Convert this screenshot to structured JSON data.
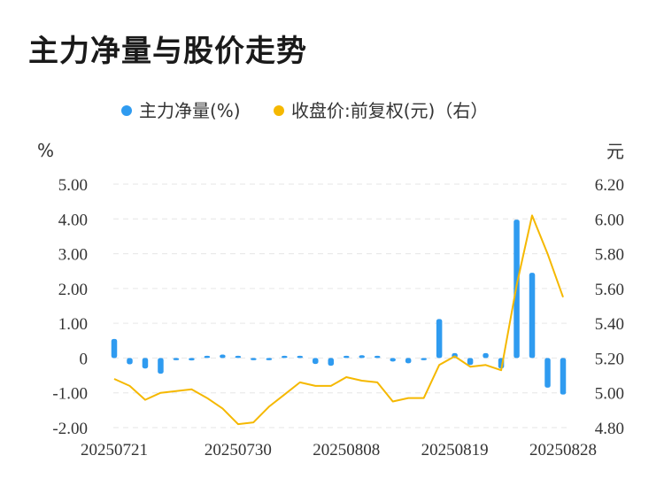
{
  "title": "主力净量与股价走势",
  "chart_data": {
    "type": "bar+line",
    "legend": [
      {
        "name": "主力净量(%)",
        "color": "#2f9bf0"
      },
      {
        "name": "收盘价:前复权(元)（右）",
        "color": "#f5b800"
      }
    ],
    "y_left": {
      "unit": "%",
      "ylim": [
        -2,
        5
      ],
      "ticks": [
        "5.00",
        "4.00",
        "3.00",
        "2.00",
        "1.00",
        "0",
        "-1.00",
        "-2.00"
      ]
    },
    "y_right": {
      "unit": "元",
      "ylim": [
        4.8,
        6.2
      ],
      "ticks": [
        "6.20",
        "6.00",
        "5.80",
        "5.60",
        "5.40",
        "5.20",
        "5.00",
        "4.80"
      ]
    },
    "x_labels": [
      "20250721",
      "20250730",
      "20250808",
      "20250819",
      "20250828"
    ],
    "x_label_index": [
      0,
      8,
      15,
      22,
      29
    ],
    "series": [
      {
        "name": "主力净量(%)",
        "type": "bar",
        "values": [
          0.55,
          -0.18,
          -0.3,
          -0.45,
          -0.05,
          -0.07,
          0.05,
          0.1,
          0.06,
          -0.05,
          -0.06,
          0.03,
          0.01,
          -0.17,
          -0.22,
          0.0,
          0.08,
          0.03,
          -0.1,
          -0.15,
          -0.04,
          1.12,
          0.14,
          -0.2,
          0.14,
          -0.3,
          3.98,
          2.45,
          -0.85,
          -1.05
        ]
      },
      {
        "name": "收盘价:前复权(元)（右）",
        "type": "line",
        "values": [
          5.08,
          5.04,
          4.96,
          5.0,
          5.01,
          5.02,
          4.97,
          4.91,
          4.82,
          4.83,
          4.92,
          4.99,
          5.06,
          5.04,
          5.04,
          5.09,
          5.07,
          5.06,
          4.95,
          4.97,
          4.97,
          5.16,
          5.21,
          5.15,
          5.16,
          5.13,
          5.62,
          6.02,
          5.8,
          5.55
        ]
      }
    ]
  }
}
